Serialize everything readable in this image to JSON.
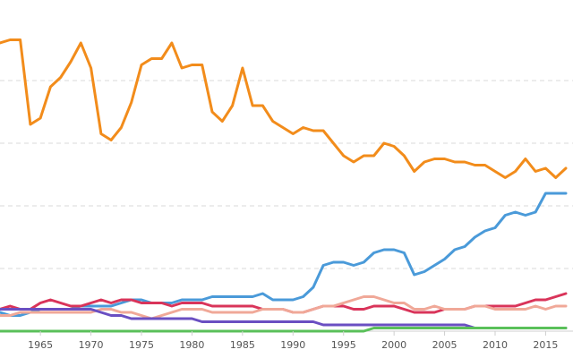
{
  "chart_data": {
    "type": "line",
    "title": "",
    "xlabel": "",
    "ylabel": "",
    "xlim": [
      1961,
      2017
    ],
    "ylim": [
      0,
      100
    ],
    "grid": true,
    "legend": "none",
    "x_ticks": [
      "1965",
      "1970",
      "1975",
      "1980",
      "1985",
      "1990",
      "1995",
      "2000",
      "2005",
      "2010",
      "2015"
    ],
    "y_gridlines": [
      20,
      40,
      60,
      80
    ],
    "x": [
      1961,
      1962,
      1963,
      1964,
      1965,
      1966,
      1967,
      1968,
      1969,
      1970,
      1971,
      1972,
      1973,
      1974,
      1975,
      1976,
      1977,
      1978,
      1979,
      1980,
      1981,
      1982,
      1983,
      1984,
      1985,
      1986,
      1987,
      1988,
      1989,
      1990,
      1991,
      1992,
      1993,
      1994,
      1995,
      1996,
      1997,
      1998,
      1999,
      2000,
      2001,
      2002,
      2003,
      2004,
      2005,
      2006,
      2007,
      2008,
      2009,
      2010,
      2011,
      2012,
      2013,
      2014,
      2015,
      2016,
      2017
    ],
    "series": [
      {
        "name": "orange",
        "color": "#f28c1b",
        "values": [
          92,
          93,
          93,
          66,
          68,
          78,
          81,
          86,
          92,
          84,
          63,
          61,
          65,
          73,
          85,
          87,
          87,
          92,
          84,
          85,
          85,
          70,
          67,
          72,
          84,
          72,
          72,
          67,
          65,
          63,
          65,
          64,
          64,
          60,
          56,
          54,
          56,
          56,
          60,
          59,
          56,
          51,
          54,
          55,
          55,
          54,
          54,
          53,
          53,
          51,
          49,
          51,
          55,
          51,
          52,
          49,
          52
        ]
      },
      {
        "name": "blue",
        "color": "#4a9ad9",
        "values": [
          6,
          5,
          5,
          6,
          7,
          7,
          7,
          7,
          8,
          8,
          8,
          8,
          9,
          10,
          10,
          9,
          9,
          9,
          10,
          10,
          10,
          11,
          11,
          11,
          11,
          11,
          12,
          10,
          10,
          10,
          11,
          14,
          21,
          22,
          22,
          21,
          22,
          25,
          26,
          26,
          25,
          18,
          19,
          21,
          23,
          26,
          27,
          30,
          32,
          33,
          37,
          38,
          37,
          38,
          44,
          44,
          44
        ]
      },
      {
        "name": "red",
        "color": "#d9345a",
        "values": [
          7,
          8,
          7,
          7,
          9,
          10,
          9,
          8,
          8,
          9,
          10,
          9,
          10,
          10,
          9,
          9,
          9,
          8,
          9,
          9,
          9,
          8,
          8,
          8,
          8,
          8,
          7,
          7,
          7,
          6,
          6,
          7,
          8,
          8,
          8,
          7,
          7,
          8,
          8,
          8,
          7,
          6,
          6,
          6,
          7,
          7,
          7,
          8,
          8,
          8,
          8,
          8,
          9,
          10,
          10,
          11,
          12
        ]
      },
      {
        "name": "salmon",
        "color": "#f0a898",
        "values": [
          5,
          5,
          6,
          6,
          6,
          6,
          6,
          6,
          6,
          6,
          7,
          7,
          6,
          6,
          5,
          4,
          5,
          6,
          7,
          7,
          7,
          6,
          6,
          6,
          6,
          6,
          7,
          7,
          7,
          6,
          6,
          7,
          8,
          8,
          9,
          10,
          11,
          11,
          10,
          9,
          9,
          7,
          7,
          8,
          7,
          7,
          7,
          8,
          8,
          7,
          7,
          7,
          7,
          8,
          7,
          8,
          8
        ]
      },
      {
        "name": "purple",
        "color": "#6a4fc2",
        "values": [
          7,
          7,
          7,
          7,
          7,
          7,
          7,
          7,
          7,
          7,
          6,
          5,
          5,
          4,
          4,
          4,
          4,
          4,
          4,
          4,
          3,
          3,
          3,
          3,
          3,
          3,
          3,
          3,
          3,
          3,
          3,
          3,
          2,
          2,
          2,
          2,
          2,
          2,
          2,
          2,
          2,
          2,
          2,
          2,
          2,
          2,
          2,
          1,
          1,
          1,
          1,
          1,
          1,
          1,
          1,
          1,
          1
        ]
      },
      {
        "name": "green",
        "color": "#5ac05a",
        "values": [
          0,
          0,
          0,
          0,
          0,
          0,
          0,
          0,
          0,
          0,
          0,
          0,
          0,
          0,
          0,
          0,
          0,
          0,
          0,
          0,
          0,
          0,
          0,
          0,
          0,
          0,
          0,
          0,
          0,
          0,
          0,
          0,
          0,
          0,
          0,
          0,
          0,
          1,
          1,
          1,
          1,
          1,
          1,
          1,
          1,
          1,
          1,
          1,
          1,
          1,
          1,
          1,
          1,
          1,
          1,
          1,
          1
        ]
      }
    ]
  }
}
